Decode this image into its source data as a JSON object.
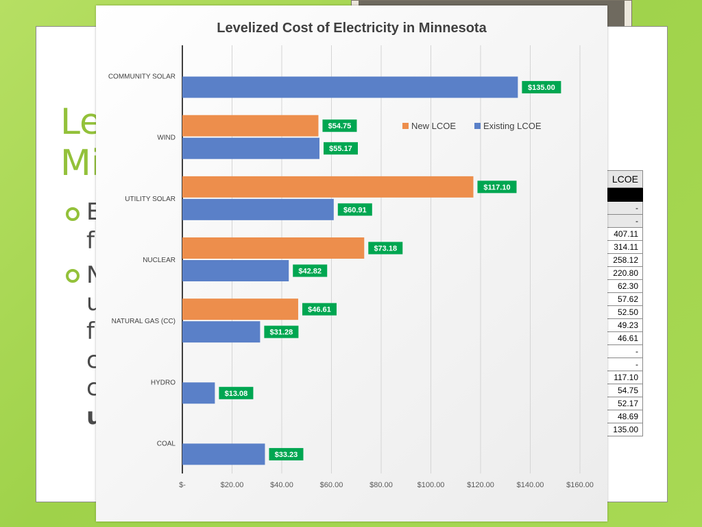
{
  "slide": {
    "title_lines": [
      "Le",
      "Mi"
    ],
    "bullets": [
      {
        "lines": [
          "E",
          "fr"
        ]
      },
      {
        "lines": [
          "N",
          "u",
          "fu",
          "c",
          "c",
          "u"
        ]
      }
    ]
  },
  "table_fragment": {
    "header": "LCOE",
    "values": [
      "-",
      "-",
      "407.11",
      "314.11",
      "258.12",
      "220.80",
      "62.30",
      "57.62",
      "52.50",
      "49.23",
      "46.61",
      "-",
      "-",
      "117.10",
      "54.75",
      "52.17",
      "48.69",
      "135.00"
    ]
  },
  "colors": {
    "new": "#ed8e4c",
    "existing": "#5a80c8",
    "label_bg": "#00a651",
    "accent": "#93c13a"
  },
  "chart_data": {
    "type": "bar",
    "orientation": "horizontal",
    "title": "Levelized Cost of Electricity in Minnesota",
    "categories": [
      "COMMUNITY SOLAR",
      "WIND",
      "UTILITY SOLAR",
      "NUCLEAR",
      "NATURAL GAS (CC)",
      "HYDRO",
      "COAL"
    ],
    "series": [
      {
        "name": "New LCOE",
        "values": [
          null,
          54.75,
          117.1,
          73.18,
          46.61,
          null,
          null
        ],
        "labels": [
          null,
          "$54.75",
          "$117.10",
          "$73.18",
          "$46.61",
          null,
          null
        ]
      },
      {
        "name": "Existing LCOE",
        "values": [
          135.0,
          55.17,
          60.91,
          42.82,
          31.28,
          13.08,
          33.23
        ],
        "labels": [
          "$135.00",
          "$55.17",
          "$60.91",
          "$42.82",
          "$31.28",
          "$13.08",
          "$33.23"
        ]
      }
    ],
    "xlim": [
      0,
      160
    ],
    "ticks": [
      0,
      20,
      40,
      60,
      80,
      100,
      120,
      140,
      160
    ],
    "tick_labels": [
      "$-",
      "$20.00",
      "$40.00",
      "$60.00",
      "$80.00",
      "$100.00",
      "$120.00",
      "$140.00",
      "$160.00"
    ],
    "grid": true,
    "legend_position": "top-right"
  }
}
